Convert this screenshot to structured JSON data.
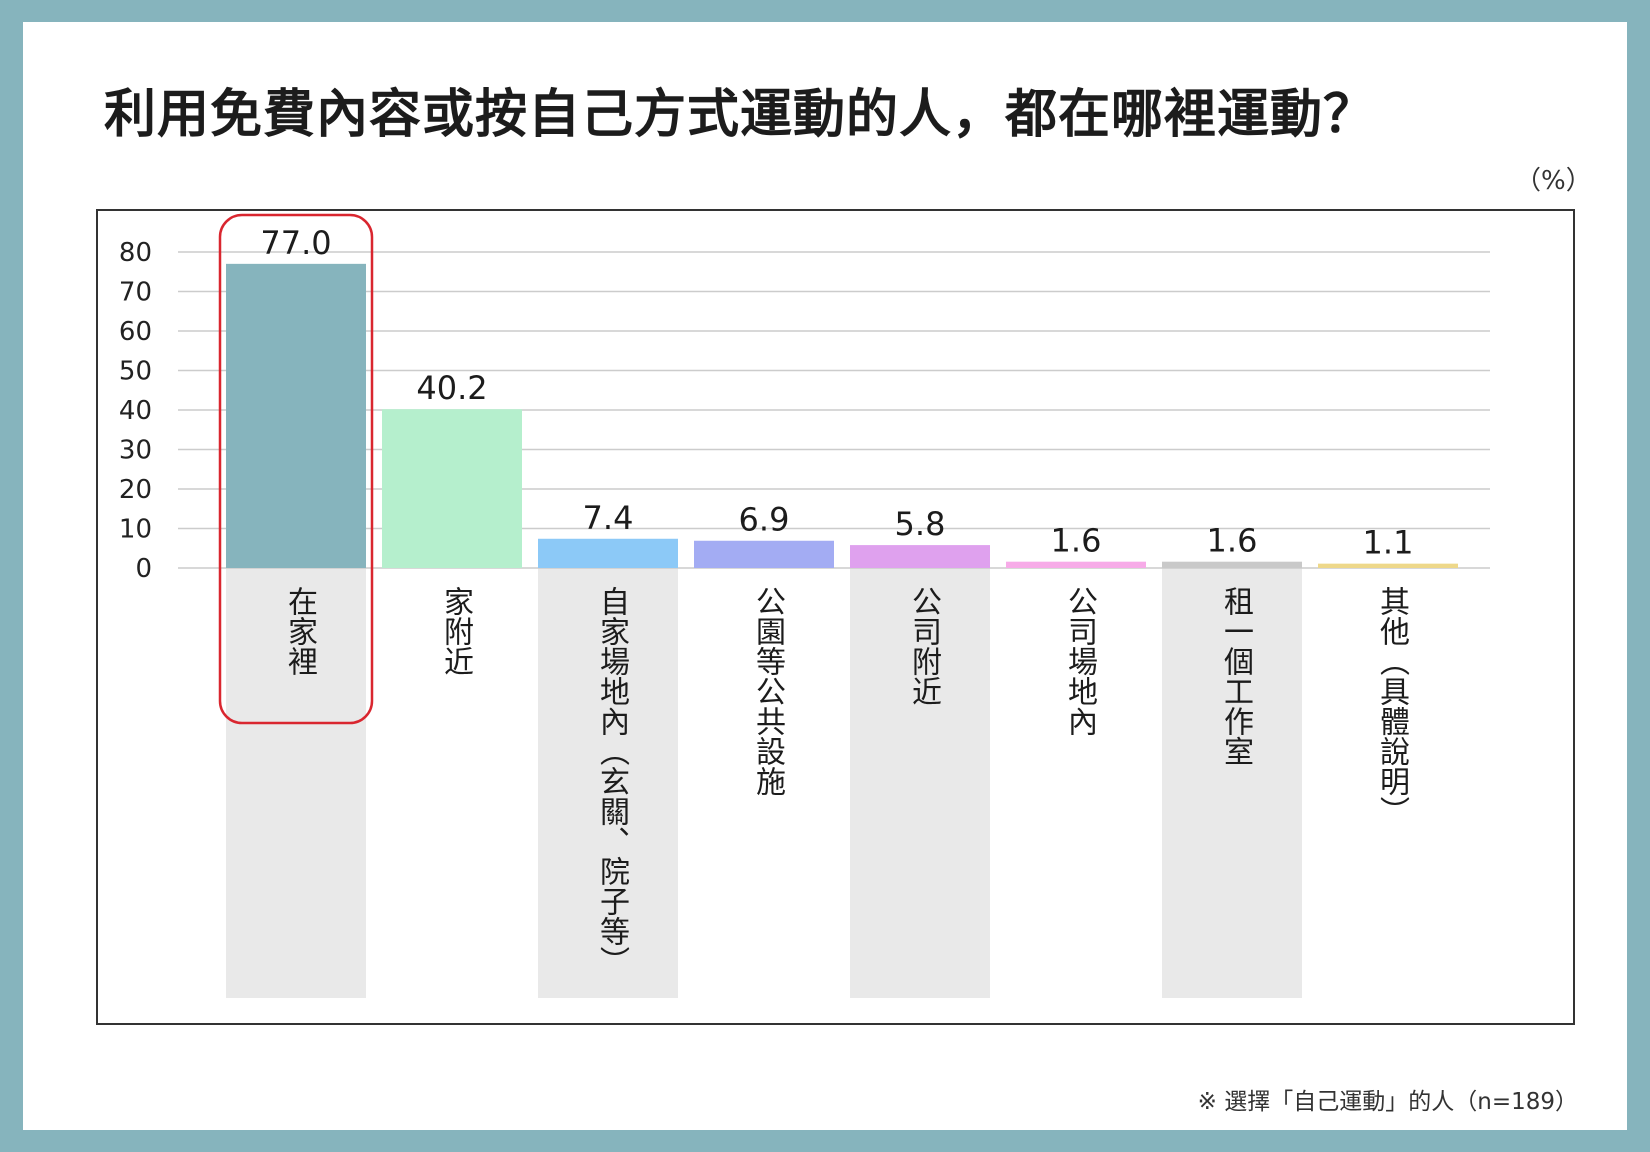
{
  "page": {
    "title": "利用免費內容或按自己方式運動的人，都在哪裡運動？",
    "unit": "（%）",
    "footnote": "※ 選擇「自己運動」的人（n=189）"
  },
  "colors": {
    "background": "#86b4bd",
    "highlight_outline": "#d9262f",
    "label_band": "#e9e9e9",
    "grid": "#cccccc"
  },
  "chart_data": {
    "type": "bar",
    "title": "利用免費內容或按自己方式運動的人，都在哪裡運動？",
    "ylabel": "（%）",
    "ylim": [
      0,
      80
    ],
    "yticks": [
      0,
      10,
      20,
      30,
      40,
      50,
      60,
      70,
      80
    ],
    "grid": true,
    "categories": [
      "在家裡",
      "家附近",
      "自家場地內（玄關、院子等）",
      "公園等公共設施",
      "公司附近",
      "公司場地內",
      "租一個工作室",
      "其他（具體說明）"
    ],
    "values": [
      77.0,
      40.2,
      7.4,
      6.9,
      5.8,
      1.6,
      1.6,
      1.1
    ],
    "value_labels": [
      "77.0",
      "40.2",
      "7.4",
      "6.9",
      "5.8",
      "1.6",
      "1.6",
      "1.1"
    ],
    "bar_colors": [
      "#86b4bd",
      "#b5efcd",
      "#8cc9f7",
      "#a3acf3",
      "#dfa1ee",
      "#f7abe8",
      "#c9c9c9",
      "#eed88a"
    ],
    "highlighted_category": "在家裡"
  }
}
